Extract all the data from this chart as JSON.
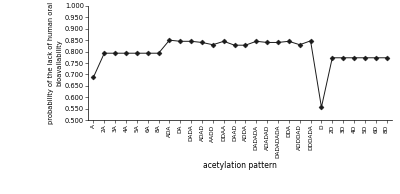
{
  "categories": [
    "A",
    "2A",
    "3A",
    "4A",
    "5A",
    "6A",
    "8A",
    "ADA",
    "DA",
    "DADA",
    "ADAD",
    "AADD",
    "DDAA",
    "DAAD",
    "ADDA",
    "DADADA",
    "ADADAD",
    "DADADADA",
    "DDA",
    "ADDDAD",
    "DDDADA",
    "D",
    "2D",
    "3D",
    "4D",
    "5D",
    "6D",
    "8D"
  ],
  "values": [
    0.688,
    0.793,
    0.793,
    0.793,
    0.793,
    0.793,
    0.793,
    0.85,
    0.845,
    0.845,
    0.84,
    0.83,
    0.845,
    0.828,
    0.828,
    0.845,
    0.84,
    0.84,
    0.845,
    0.83,
    0.847,
    0.557,
    0.773,
    0.773,
    0.773,
    0.773,
    0.773,
    0.773
  ],
  "ylabel": "probability of the lack of human oral\nbioavailability",
  "xlabel": "acetylation pattern",
  "ylim": [
    0.5,
    1.0
  ],
  "yticks": [
    0.5,
    0.55,
    0.6,
    0.65,
    0.7,
    0.75,
    0.8,
    0.85,
    0.9,
    0.95,
    1.0
  ],
  "line_color": "#1a1a1a",
  "marker": "D",
  "marker_size": 2.5,
  "marker_color": "#1a1a1a",
  "bg_color": "#ffffff"
}
